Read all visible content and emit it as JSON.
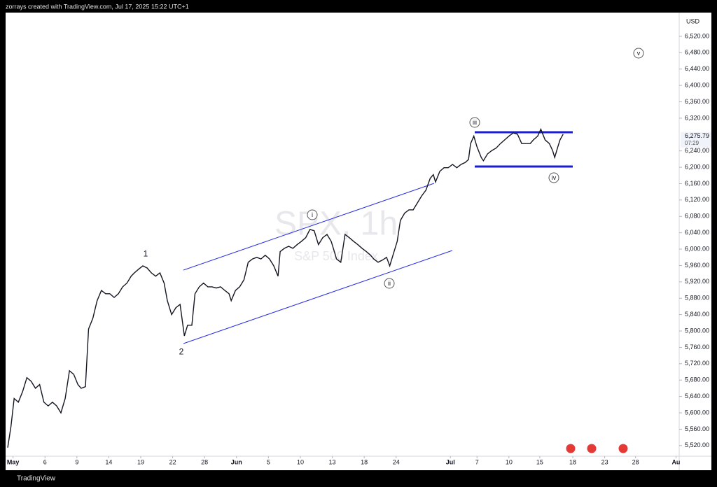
{
  "header": "zorrays created with TradingView.com, Jul 17, 2025 15:22 UTC+1",
  "footer": "TradingView",
  "chart_data": {
    "type": "line",
    "currency": "USD",
    "watermark": {
      "title": "SPX, 1h",
      "subtitle": "S&P 500 Index"
    },
    "color": "#131722",
    "annotations": [
      "1",
      "2",
      "i",
      "ii",
      "iii",
      "iv",
      "v"
    ],
    "last_price": {
      "value": 6275.79,
      "label": "6,275.79"
    },
    "countdown": "07:29",
    "xlim": [
      -0.7,
      62.6
    ],
    "xticks": [
      {
        "value": 0,
        "label": "May"
      },
      {
        "value": 3,
        "label": "6"
      },
      {
        "value": 6,
        "label": "9"
      },
      {
        "value": 9,
        "label": "14"
      },
      {
        "value": 12,
        "label": "19"
      },
      {
        "value": 15,
        "label": "22"
      },
      {
        "value": 18,
        "label": "28"
      },
      {
        "value": 21,
        "label": "Jun"
      },
      {
        "value": 24,
        "label": "5"
      },
      {
        "value": 27,
        "label": "10"
      },
      {
        "value": 30,
        "label": "13"
      },
      {
        "value": 33,
        "label": "18"
      },
      {
        "value": 36,
        "label": "24"
      },
      {
        "value": 41.1,
        "label": "Jul"
      },
      {
        "value": 43.6,
        "label": "7"
      },
      {
        "value": 46.6,
        "label": "10"
      },
      {
        "value": 49.5,
        "label": "15"
      },
      {
        "value": 52.6,
        "label": "18"
      },
      {
        "value": 55.6,
        "label": "23"
      },
      {
        "value": 58.5,
        "label": "28"
      },
      {
        "value": 62.3,
        "label": "Au"
      }
    ],
    "ylim": [
      5494,
      6578
    ],
    "yticks": [
      {
        "value": 5520,
        "label": "5,520.00"
      },
      {
        "value": 5560,
        "label": "5,560.00"
      },
      {
        "value": 5600,
        "label": "5,600.00"
      },
      {
        "value": 5640,
        "label": "5,640.00"
      },
      {
        "value": 5680,
        "label": "5,680.00"
      },
      {
        "value": 5720,
        "label": "5,720.00"
      },
      {
        "value": 5760,
        "label": "5,760.00"
      },
      {
        "value": 5800,
        "label": "5,800.00"
      },
      {
        "value": 5840,
        "label": "5,840.00"
      },
      {
        "value": 5880,
        "label": "5,880.00"
      },
      {
        "value": 5920,
        "label": "5,920.00"
      },
      {
        "value": 5960,
        "label": "5,960.00"
      },
      {
        "value": 6000,
        "label": "6,000.00"
      },
      {
        "value": 6040,
        "label": "6,040.00"
      },
      {
        "value": 6080,
        "label": "6,080.00"
      },
      {
        "value": 6120,
        "label": "6,120.00"
      },
      {
        "value": 6160,
        "label": "6,160.00"
      },
      {
        "value": 6200,
        "label": "6,200.00"
      },
      {
        "value": 6240,
        "label": "6,240.00"
      },
      {
        "value": 6320,
        "label": "6,320.00"
      },
      {
        "value": 6360,
        "label": "6,360.00"
      },
      {
        "value": 6400,
        "label": "6,400.00"
      },
      {
        "value": 6440,
        "label": "6,440.00"
      },
      {
        "value": 6480,
        "label": "6,480.00"
      },
      {
        "value": 6520,
        "label": "6,520.00"
      }
    ],
    "x": [
      -0.5,
      -0.2,
      0.1,
      0.5,
      0.9,
      1.3,
      1.7,
      2.1,
      2.5,
      2.9,
      3.3,
      3.7,
      4.1,
      4.5,
      4.9,
      5.3,
      5.7,
      6.1,
      6.4,
      6.8,
      7.1,
      7.5,
      7.9,
      8.3,
      8.7,
      9.1,
      9.5,
      9.9,
      10.3,
      10.7,
      11.1,
      11.4,
      11.8,
      12.2,
      12.6,
      13,
      13.4,
      13.8,
      14.2,
      14.5,
      14.9,
      15.3,
      15.7,
      16.1,
      16.4,
      16.8,
      17.1,
      17.5,
      17.9,
      18.3,
      18.7,
      19.1,
      19.5,
      19.9,
      20.3,
      20.5,
      20.9,
      21.3,
      21.7,
      22.1,
      22.5,
      22.9,
      23.3,
      23.7,
      24.1,
      24.5,
      24.9,
      25.1,
      25.5,
      25.9,
      26.3,
      26.7,
      27.1,
      27.5,
      27.9,
      28.3,
      28.7,
      29.1,
      29.5,
      29.9,
      30.1,
      30.4,
      30.8,
      31.2,
      31.6,
      32,
      32.4,
      32.8,
      33.2,
      33.6,
      33.9,
      34.3,
      34.7,
      35.1,
      35.4,
      35.7,
      36.1,
      36.4,
      36.8,
      37.2,
      37.6,
      38,
      38.4,
      38.8,
      39.2,
      39.5,
      39.7,
      40.1,
      40.5,
      40.9,
      41.3,
      41.7,
      42.1,
      42.5,
      42.8,
      43,
      43.3,
      43.6,
      44,
      44.2,
      44.6,
      45,
      45.4,
      45.8,
      46.2,
      46.6,
      47,
      47.4,
      47.8,
      48.2,
      48.6,
      48.9,
      49.3,
      49.6,
      50,
      50.4,
      50.7,
      50.9,
      51.2,
      51.4,
      51.7
    ],
    "series": [
      {
        "color": "#131722",
        "values": [
          5515,
          5566,
          5635,
          5626,
          5652,
          5686,
          5677,
          5660,
          5669,
          5626,
          5617,
          5626,
          5617,
          5600,
          5635,
          5703,
          5694,
          5669,
          5660,
          5664,
          5805,
          5831,
          5874,
          5899,
          5891,
          5891,
          5882,
          5891,
          5908,
          5917,
          5934,
          5942,
          5951,
          5959,
          5954,
          5942,
          5934,
          5942,
          5917,
          5874,
          5840,
          5857,
          5865,
          5788,
          5814,
          5814,
          5891,
          5908,
          5917,
          5908,
          5908,
          5905,
          5908,
          5899,
          5891,
          5874,
          5899,
          5908,
          5925,
          5968,
          5976,
          5980,
          5976,
          5985,
          5976,
          5959,
          5934,
          5994,
          6002,
          6007,
          6002,
          6011,
          6019,
          6028,
          6048,
          6045,
          6011,
          6028,
          6036,
          6019,
          6002,
          5976,
          5968,
          6036,
          6028,
          6019,
          6011,
          6002,
          5994,
          5985,
          5976,
          5968,
          5973,
          5980,
          5959,
          5985,
          6019,
          6070,
          6088,
          6096,
          6096,
          6113,
          6130,
          6144,
          6173,
          6182,
          6164,
          6190,
          6199,
          6199,
          6207,
          6199,
          6207,
          6212,
          6219,
          6258,
          6276,
          6250,
          6224,
          6216,
          6233,
          6241,
          6247,
          6258,
          6267,
          6276,
          6284,
          6281,
          6258,
          6258,
          6258,
          6267,
          6276,
          6293,
          6267,
          6258,
          6241,
          6224,
          6250,
          6267,
          6281
        ]
      }
    ]
  }
}
